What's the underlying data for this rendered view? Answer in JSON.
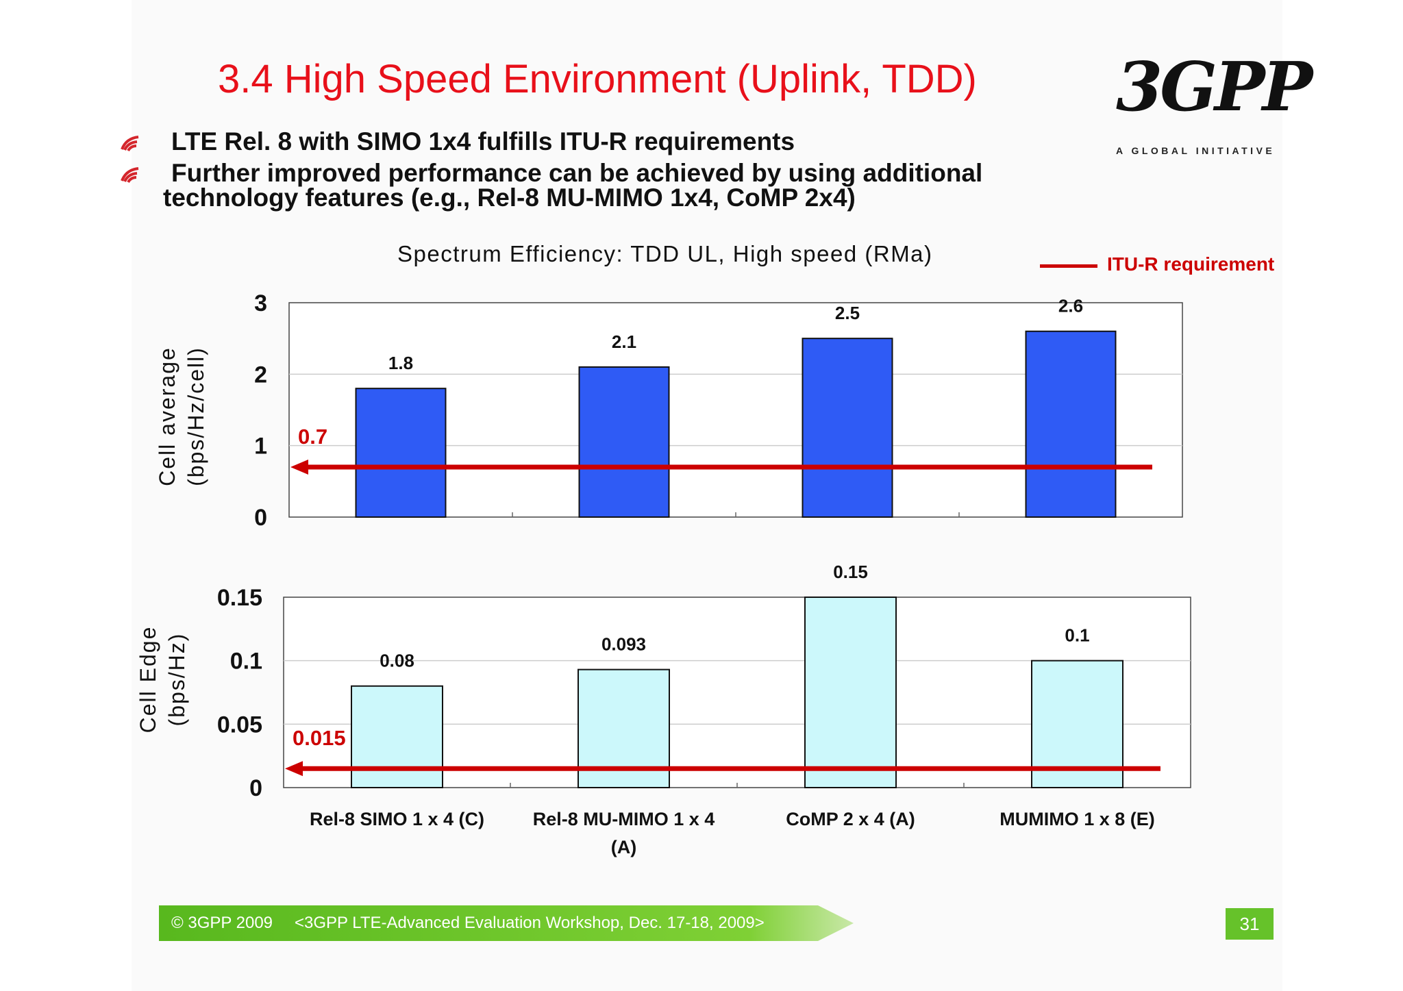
{
  "title": "3.4 High Speed Environment (Uplink, TDD)",
  "logo": {
    "text": "3GPP",
    "tagline": "A GLOBAL INITIATIVE",
    "icon": "3gpp-logo"
  },
  "bullets": [
    {
      "line1": "LTE Rel. 8 with SIMO 1x4 fulfills ITU-R requirements"
    },
    {
      "line1": "Further improved performance can be achieved by using additional",
      "line2": "technology features  (e.g., Rel-8 MU-MIMO 1x4, CoMP 2x4)"
    }
  ],
  "bullet_icon": "wave-bullet-icon",
  "legend": {
    "label": "ITU-R requirement",
    "color": "#cc0000"
  },
  "footer": {
    "copyright": "© 3GPP 2009",
    "event": "<3GPP LTE-Advanced Evaluation Workshop, Dec. 17-18, 2009>",
    "page": "31",
    "color": "#66c22a"
  },
  "chart_data": [
    {
      "type": "bar",
      "title": "Spectrum Efficiency: TDD UL, High speed (RMa)",
      "ylabel_line1": "Cell average",
      "ylabel_line2": "(bps/Hz/cell)",
      "categories": [
        "Rel-8 SIMO 1 x 4 (C)",
        "Rel-8 MU-MIMO 1 x 4 (A)",
        "CoMP 2 x 4 (A)",
        "MUMIMO 1 x 8 (E)"
      ],
      "values": [
        1.8,
        2.1,
        2.5,
        2.6
      ],
      "value_labels": [
        "1.8",
        "2.1",
        "2.5",
        "2.6"
      ],
      "ylim": [
        0,
        3
      ],
      "yticks": [
        "0",
        "1",
        "2",
        "3"
      ],
      "yticks_values": [
        0,
        1,
        2,
        3
      ],
      "requirement": 0.7,
      "requirement_label": "0.7",
      "bar_color": "#2f5bf5",
      "grid": true
    },
    {
      "type": "bar",
      "ylabel_line1": "Cell Edge",
      "ylabel_line2": "(bps/Hz)",
      "categories": [
        "Rel-8 SIMO 1 x 4 (C)",
        "Rel-8 MU-MIMO 1 x 4 (A)",
        "CoMP 2 x 4 (A)",
        "MUMIMO 1 x 8 (E)"
      ],
      "values": [
        0.08,
        0.093,
        0.15,
        0.1
      ],
      "value_labels": [
        "0.08",
        "0.093",
        "0.15",
        "0.1"
      ],
      "ylim": [
        0,
        0.15
      ],
      "yticks": [
        "0",
        "0.05",
        "0.1",
        "0.15"
      ],
      "yticks_values": [
        0,
        0.05,
        0.1,
        0.15
      ],
      "requirement": 0.015,
      "requirement_label": "0.015",
      "bar_color": "#ccf8fb",
      "grid": true
    }
  ],
  "xlabels": [
    {
      "line1": "Rel-8 SIMO 1 x 4 (C)",
      "line2": ""
    },
    {
      "line1": "Rel-8 MU-MIMO 1 x 4",
      "line2": "(A)"
    },
    {
      "line1": "CoMP 2 x 4 (A)",
      "line2": ""
    },
    {
      "line1": "MUMIMO 1 x 8 (E)",
      "line2": ""
    }
  ]
}
